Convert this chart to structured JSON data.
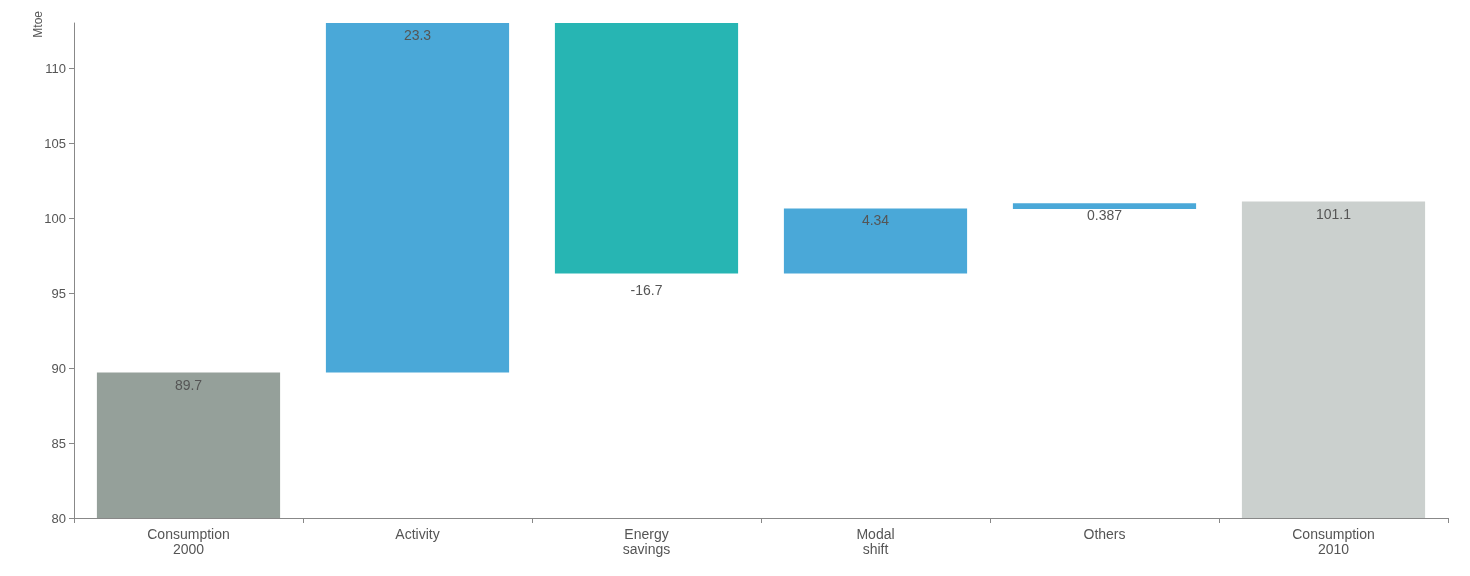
{
  "chart_data": {
    "type": "bar",
    "ylabel": "Mtoe",
    "categories": [
      "Consumption\n2000",
      "Activity",
      "Energy\nsavings",
      "Modal\nshift",
      "Others",
      "Consumption\n2010"
    ],
    "values": [
      89.7,
      23.3,
      -16.7,
      4.34,
      0.387,
      101.1
    ],
    "base": [
      null,
      89.7,
      113,
      96.3,
      100.6,
      null
    ],
    "colors": [
      "#95a09a",
      "#4aa8d8",
      "#27b5b3",
      "#4aa8d8",
      "#4aa8d8",
      "#cbd0ce"
    ],
    "ylim": [
      80,
      113
    ],
    "yticks": [
      80,
      85,
      90,
      95,
      100,
      105,
      110
    ],
    "data_labels": true
  }
}
